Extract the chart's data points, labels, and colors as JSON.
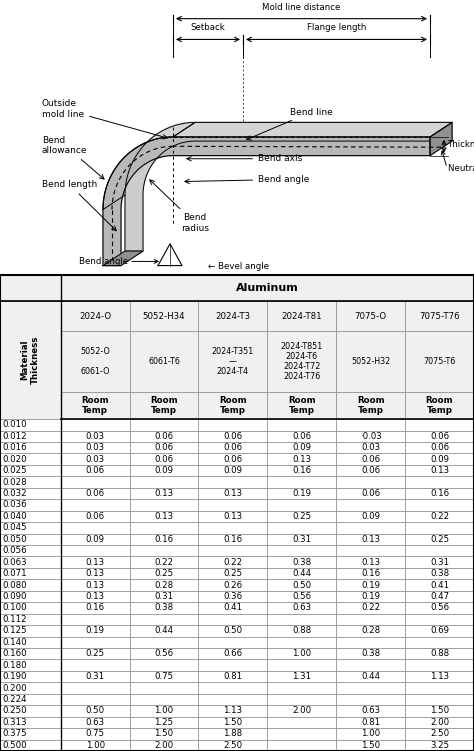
{
  "table_title": "Aluminum",
  "col_headers_line1": [
    "2024-O",
    "5052-H34",
    "2024-T3",
    "2024-T81",
    "7075-O",
    "7075-T76"
  ],
  "col_headers_line2": [
    "5052-O\n\n6061-O",
    "6061-T6",
    "2024-T351\n—\n2024-T4",
    "2024-T851\n2024-T6\n2024-T72\n2024-T76",
    "5052-H32",
    "7075-T6"
  ],
  "row_labels": [
    "0.010",
    "0.012",
    "0.016",
    "0.020",
    "0.025",
    "0.028",
    "0.032",
    "0.036",
    "0.040",
    "0.045",
    "0.050",
    "0.056",
    "0.063",
    "0.071",
    "0.080",
    "0.090",
    "0.100",
    "0.112",
    "0.125",
    "0.140",
    "0.160",
    "0.180",
    "0.190",
    "0.200",
    "0.224",
    "0.250",
    "0.313",
    "0.375",
    "0.500"
  ],
  "data": [
    [
      "",
      "",
      "",
      "",
      "",
      ""
    ],
    [
      "0.03",
      "0.06",
      "0.06",
      "0.06",
      "·0.03",
      "0.06"
    ],
    [
      "0.03",
      "0.06",
      "0.06",
      "0.09",
      "0.03",
      "0.06"
    ],
    [
      "0.03",
      "0.06",
      "0.06",
      "0.13",
      "0.06",
      "0.09"
    ],
    [
      "0.06",
      "0.09",
      "0.09",
      "0.16",
      "0.06",
      "0.13"
    ],
    [
      "",
      "",
      "",
      "",
      "",
      ""
    ],
    [
      "0.06",
      "0.13",
      "0.13",
      "0.19",
      "0.06",
      "0.16"
    ],
    [
      "",
      "",
      "",
      "",
      "",
      ""
    ],
    [
      "0.06",
      "0.13",
      "0.13",
      "0.25",
      "0.09",
      "0.22"
    ],
    [
      "",
      "",
      "",
      "",
      "",
      ""
    ],
    [
      "0.09",
      "0.16",
      "0.16",
      "0.31",
      "0.13",
      "0.25"
    ],
    [
      "",
      "",
      "",
      "",
      "",
      ""
    ],
    [
      "0.13",
      "0.22",
      "0.22",
      "0.38",
      "0.13",
      "0.31"
    ],
    [
      "0.13",
      "0.25",
      "0.25",
      "0.44",
      "0.16",
      "0.38"
    ],
    [
      "0.13",
      "0.28",
      "0.26",
      "0.50",
      "0.19",
      "0.41"
    ],
    [
      "0.13",
      "0.31",
      "0.36",
      "0.56",
      "0.19",
      "0.47"
    ],
    [
      "0.16",
      "0.38",
      "0.41",
      "0.63",
      "0.22",
      "0.56"
    ],
    [
      "",
      "",
      "",
      "",
      "",
      ""
    ],
    [
      "0.19",
      "0.44",
      "0.50",
      "0.88",
      "0.28",
      "0.69"
    ],
    [
      "",
      "",
      "",
      "",
      "",
      ""
    ],
    [
      "0.25",
      "0.56",
      "0.66",
      "1.00",
      "0.38",
      "0.88"
    ],
    [
      "",
      "",
      "",
      "",
      "",
      ""
    ],
    [
      "0.31",
      "0.75",
      "0.81",
      "1.31",
      "0.44",
      "1.13"
    ],
    [
      "",
      "",
      "",
      "",
      "",
      ""
    ],
    [
      "",
      "",
      "",
      "",
      "",
      ""
    ],
    [
      "0.50",
      "1.00",
      "1.13",
      "2.00",
      "0.63",
      "1.50"
    ],
    [
      "0.63",
      "1.25",
      "1.50",
      "",
      "0.81",
      "2.00"
    ],
    [
      "0.75",
      "1.50",
      "1.88",
      "",
      "1.00",
      "2.50"
    ],
    [
      "1.00",
      "2.00",
      "2.50",
      "",
      "1.50",
      "3.25"
    ]
  ],
  "bg_color": "#ffffff",
  "header_bg": "#f0f0f0",
  "grid_color": "#999999",
  "metal_face": "#b8b8b8",
  "metal_top": "#d4d4d4",
  "metal_side": "#909090",
  "metal_back": "#cccccc"
}
